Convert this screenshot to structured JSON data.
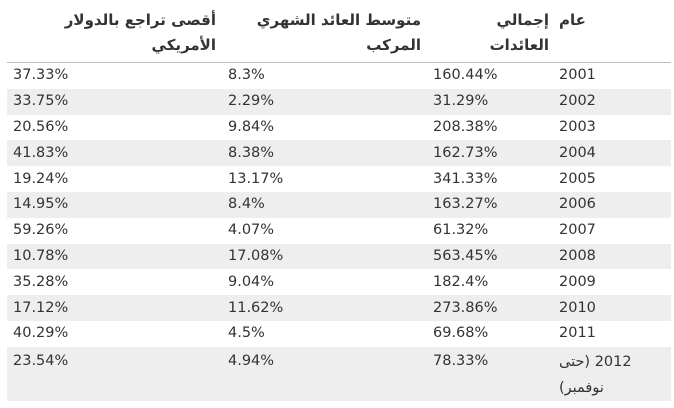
{
  "headers": {
    "year": "عام",
    "total_returns": "إجمالي العائدات",
    "avg_monthly": "متوسط العائد الشهري المركب",
    "max_decline": "أقصى تراجع بالدولار الأمريكي"
  },
  "rows": [
    {
      "year": "2001",
      "total": "160.44%",
      "avg": "8.3%",
      "max": "37.33%"
    },
    {
      "year": "2002",
      "total": "31.29%",
      "avg": "2.29%",
      "max": "33.75%"
    },
    {
      "year": "2003",
      "total": "208.38%",
      "avg": "9.84%",
      "max": "20.56%"
    },
    {
      "year": "2004",
      "total": "162.73%",
      "avg": "8.38%",
      "max": "41.83%"
    },
    {
      "year": "2005",
      "total": "341.33%",
      "avg": "13.17%",
      "max": "19.24%"
    },
    {
      "year": "2006",
      "total": "163.27%",
      "avg": "8.4%",
      "max": "14.95%"
    },
    {
      "year": "2007",
      "total": "61.32%",
      "avg": "4.07%",
      "max": "59.26%"
    },
    {
      "year": "2008",
      "total": "563.45%",
      "avg": "17.08%",
      "max": "10.78%"
    },
    {
      "year": "2009",
      "total": "182.4%",
      "avg": "9.04%",
      "max": "35.28%"
    },
    {
      "year": "2010",
      "total": "273.86%",
      "avg": "11.62%",
      "max": "17.12%"
    },
    {
      "year": "2011",
      "total": "69.68%",
      "avg": "4.5%",
      "max": "40.29%"
    },
    {
      "year": "2012 (حتى نوفمبر)",
      "total": "78.33%",
      "avg": "4.94%",
      "max": "23.54%"
    }
  ]
}
